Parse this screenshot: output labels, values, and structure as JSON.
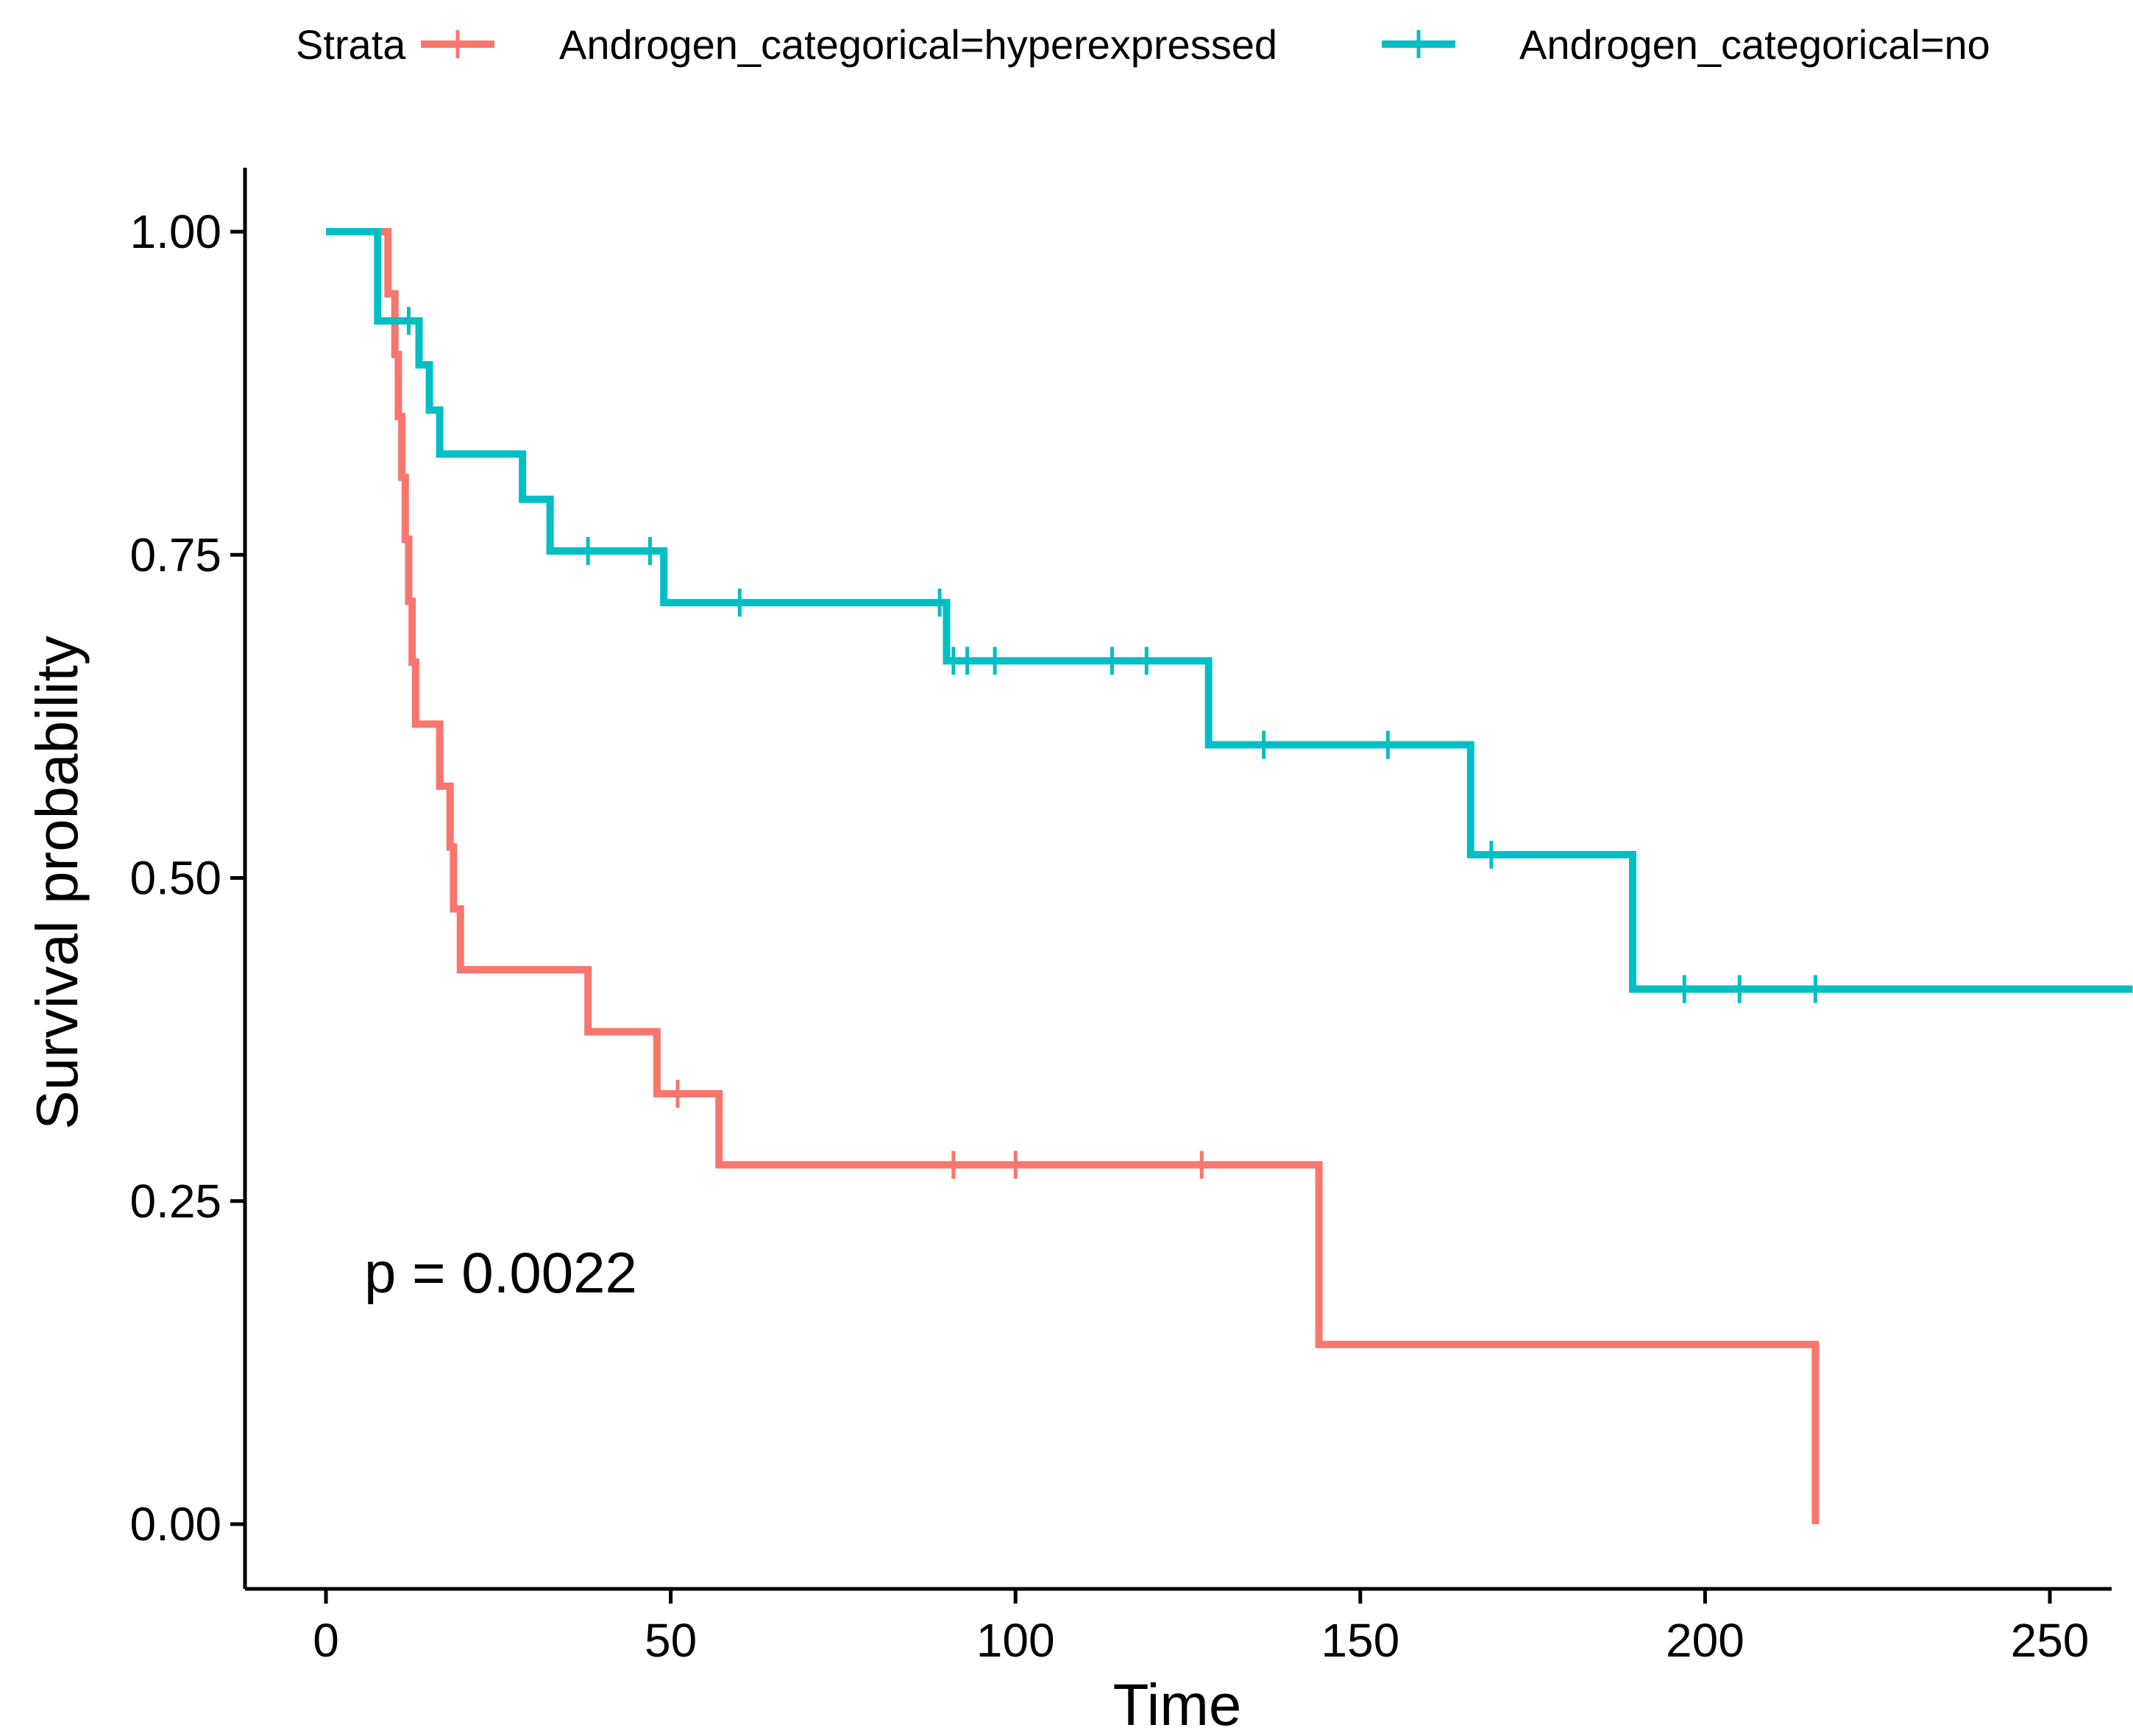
{
  "chart_data": {
    "type": "line",
    "subtype": "kaplan-meier step",
    "title": "",
    "xlabel": "Time",
    "ylabel": "Survival probability",
    "xlim": [
      -12,
      262
    ],
    "ylim": [
      -0.05,
      1.05
    ],
    "x_ticks": [
      0,
      50,
      100,
      150,
      200,
      250
    ],
    "y_ticks": [
      0.0,
      0.25,
      0.5,
      0.75,
      1.0
    ],
    "x_tick_labels": [
      "0",
      "50",
      "100",
      "150",
      "200",
      "250"
    ],
    "y_tick_labels": [
      "0.00",
      "0.25",
      "0.50",
      "0.75",
      "1.00"
    ],
    "grid": false,
    "legend": {
      "position": "top",
      "title": "Strata",
      "entries": [
        "Androgen_categorical=hyperexpressed",
        "Androgen_categorical=no"
      ]
    },
    "annotation": "p = 0.0022",
    "series": [
      {
        "name": "Androgen_categorical=hyperexpressed",
        "color": "#F8766D",
        "steps": [
          [
            8,
            1.0
          ],
          [
            9,
            0.952
          ],
          [
            10,
            0.905
          ],
          [
            10.5,
            0.857
          ],
          [
            11,
            0.81
          ],
          [
            11.5,
            0.762
          ],
          [
            12,
            0.714
          ],
          [
            12.5,
            0.667
          ],
          [
            13,
            0.619
          ],
          [
            16.5,
            0.571
          ],
          [
            18,
            0.524
          ],
          [
            18.5,
            0.476
          ],
          [
            19.5,
            0.429
          ],
          [
            38,
            0.381
          ],
          [
            48,
            0.333
          ],
          [
            57,
            0.278
          ],
          [
            144,
            0.139
          ],
          [
            216,
            0.0
          ]
        ],
        "end_x": 216,
        "censor_times": [
          51,
          91,
          100,
          127
        ]
      },
      {
        "name": "Androgen_categorical=no",
        "color": "#00BFC4",
        "start_x": 0,
        "steps": [
          [
            7.5,
            0.931
          ],
          [
            13.5,
            0.897
          ],
          [
            15,
            0.862
          ],
          [
            16.5,
            0.828
          ],
          [
            28.5,
            0.793
          ],
          [
            32.5,
            0.753
          ],
          [
            49,
            0.713
          ],
          [
            90,
            0.668
          ],
          [
            128,
            0.603
          ],
          [
            166,
            0.518
          ],
          [
            189.5,
            0.414
          ]
        ],
        "end_x": 262,
        "censor_times": [
          12,
          38,
          47,
          60,
          89,
          91,
          93,
          97,
          114,
          119,
          136,
          154,
          169,
          197,
          205,
          216
        ]
      }
    ]
  }
}
